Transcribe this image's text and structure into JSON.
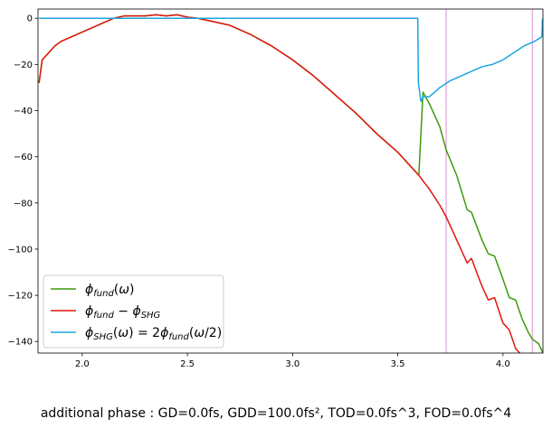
{
  "caption": "additional phase : GD=0.0fs, GDD=100.0fs², TOD=0.0fs^3, FOD=0.0fs^4",
  "chart_data": {
    "type": "line",
    "title": "",
    "xlabel": "",
    "ylabel": "",
    "xlim": [
      1.79,
      4.19
    ],
    "ylim": [
      -145,
      4
    ],
    "x_ticks": [
      "2.0",
      "2.5",
      "3.0",
      "3.5",
      "4.0"
    ],
    "y_ticks": [
      "0",
      "−20",
      "−40",
      "−60",
      "−80",
      "−100",
      "−120",
      "−140"
    ],
    "grid": false,
    "legend": "lower-left",
    "vertical_lines": [
      {
        "x": 3.73,
        "color": "#e6b3e0"
      },
      {
        "x": 4.14,
        "color": "#e6b3e0"
      }
    ],
    "series": [
      {
        "name": "φ_fund(ω)",
        "color": "#3f9a0e",
        "x": [
          1.795,
          1.81,
          1.84,
          1.87,
          1.9,
          1.95,
          2.0,
          2.05,
          2.1,
          2.15,
          2.2,
          2.25,
          2.3,
          2.35,
          2.4,
          2.45,
          2.5,
          2.55,
          2.6,
          2.7,
          2.8,
          2.9,
          3.0,
          3.1,
          3.2,
          3.3,
          3.4,
          3.5,
          3.55,
          3.6,
          3.62,
          3.65,
          3.7,
          3.73,
          3.78,
          3.8,
          3.83,
          3.85,
          3.9,
          3.93,
          3.96,
          4.0,
          4.03,
          4.06,
          4.09,
          4.12,
          4.14,
          4.17,
          4.19
        ],
        "values": [
          -28,
          -18,
          -15,
          -12,
          -10,
          -8,
          -6,
          -4,
          -2,
          0,
          1,
          1,
          1,
          1.5,
          1,
          1.5,
          0.5,
          0,
          -1,
          -3,
          -7,
          -12,
          -18,
          -25,
          -33,
          -41,
          -50,
          -58,
          -63,
          -68,
          -32,
          -37,
          -47,
          -57,
          -68,
          -74,
          -83,
          -84,
          -96,
          -102,
          -103,
          -113,
          -121,
          -122,
          -130,
          -136,
          -139,
          -141,
          -145
        ]
      },
      {
        "name": "φ_fund − φ_SHG",
        "color": "#e3150e",
        "x": [
          1.795,
          1.81,
          1.84,
          1.87,
          1.9,
          1.95,
          2.0,
          2.05,
          2.1,
          2.15,
          2.2,
          2.25,
          2.3,
          2.35,
          2.4,
          2.45,
          2.5,
          2.55,
          2.6,
          2.7,
          2.8,
          2.9,
          3.0,
          3.1,
          3.2,
          3.3,
          3.4,
          3.5,
          3.55,
          3.6,
          3.65,
          3.7,
          3.73,
          3.76,
          3.8,
          3.83,
          3.85,
          3.9,
          3.93,
          3.96,
          4.0,
          4.03,
          4.06,
          4.09
        ],
        "values": [
          -28,
          -18,
          -15,
          -12,
          -10,
          -8,
          -6,
          -4,
          -2,
          0,
          1,
          1,
          1,
          1.5,
          1,
          1.5,
          0.5,
          0,
          -1,
          -3,
          -7,
          -12,
          -18,
          -25,
          -33,
          -41,
          -50,
          -58,
          -63,
          -68,
          -74,
          -81,
          -86,
          -92,
          -100,
          -106,
          -104,
          -116,
          -122,
          -121,
          -132,
          -135,
          -143,
          -146
        ]
      },
      {
        "name": "φ_SHG(ω) = 2φ_fund(ω/2)",
        "color": "#1ba6e0",
        "x": [
          1.795,
          2.0,
          2.5,
          3.0,
          3.5,
          3.595,
          3.598,
          3.61,
          3.62,
          3.65,
          3.7,
          3.75,
          3.8,
          3.85,
          3.9,
          3.95,
          4.0,
          4.05,
          4.1,
          4.15,
          4.185,
          4.188
        ],
        "values": [
          0,
          0,
          0,
          0,
          0,
          0,
          -28,
          -36,
          -34,
          -34,
          -30,
          -27,
          -25,
          -23,
          -21,
          -20,
          -18,
          -15,
          -12,
          -10,
          -8,
          0
        ]
      }
    ]
  }
}
